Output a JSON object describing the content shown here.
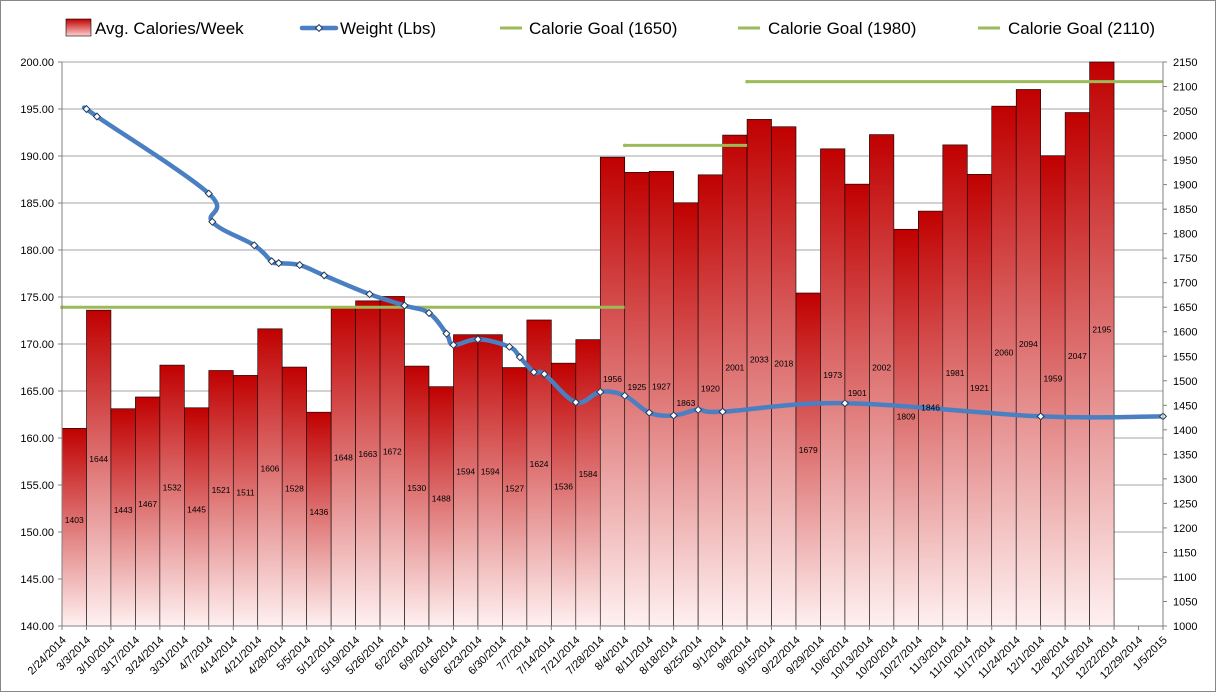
{
  "chart_data": {
    "type": "bar",
    "x_dates": [
      "2/24/2014",
      "3/3/2014",
      "3/10/2014",
      "3/17/2014",
      "3/24/2014",
      "3/31/2014",
      "4/7/2014",
      "4/14/2014",
      "4/21/2014",
      "4/28/2014",
      "5/5/2014",
      "5/12/2014",
      "5/19/2014",
      "5/26/2014",
      "6/2/2014",
      "6/9/2014",
      "6/16/2014",
      "6/23/2014",
      "6/30/2014",
      "7/7/2014",
      "7/14/2014",
      "7/21/2014",
      "7/28/2014",
      "8/4/2014",
      "8/11/2014",
      "8/18/2014",
      "8/25/2014",
      "9/1/2014",
      "9/8/2014",
      "9/15/2014",
      "9/22/2014",
      "9/29/2014",
      "10/6/2014",
      "10/13/2014",
      "10/20/2014",
      "10/27/2014",
      "11/3/2014",
      "11/10/2014",
      "11/17/2014",
      "11/24/2014",
      "12/1/2014",
      "12/8/2014",
      "12/15/2014",
      "12/22/2014",
      "12/29/2014",
      "1/5/2015"
    ],
    "calories_week_start": [
      "3/3/2014",
      "3/10/2014",
      "3/17/2014",
      "3/24/2014",
      "3/31/2014",
      "4/7/2014",
      "4/14/2014",
      "4/21/2014",
      "4/28/2014",
      "5/5/2014",
      "5/12/2014",
      "5/19/2014",
      "5/26/2014",
      "6/2/2014",
      "6/9/2014",
      "6/16/2014",
      "6/23/2014",
      "6/30/2014",
      "7/7/2014",
      "7/14/2014",
      "7/21/2014",
      "7/28/2014",
      "8/4/2014",
      "8/11/2014",
      "8/18/2014",
      "8/25/2014",
      "9/1/2014",
      "9/8/2014",
      "9/15/2014",
      "9/22/2014",
      "9/29/2014",
      "10/6/2014",
      "10/13/2014",
      "10/20/2014",
      "10/27/2014",
      "11/3/2014",
      "11/10/2014",
      "11/17/2014",
      "11/24/2014",
      "12/1/2014",
      "12/8/2014",
      "12/15/2014",
      "12/22/2014"
    ],
    "series": [
      {
        "name": "Avg. Calories/Week",
        "axis": "right",
        "values": [
          1403,
          1644,
          1443,
          1467,
          1532,
          1445,
          1521,
          1511,
          1606,
          1528,
          1436,
          1648,
          1663,
          1672,
          1530,
          1488,
          1594,
          1594,
          1527,
          1624,
          1536,
          1584,
          1956,
          1925,
          1927,
          1863,
          1920,
          2001,
          2033,
          2018,
          1679,
          1973,
          1901,
          2002,
          1809,
          1846,
          1981,
          1921,
          2060,
          2094,
          1959,
          2047,
          2195
        ],
        "color": "#c00000"
      },
      {
        "name": "Weight (Lbs)",
        "axis": "left",
        "color": "#4a7fc1",
        "points": [
          [
            "3/3/2014",
            195.0
          ],
          [
            "3/6/2014",
            194.2
          ],
          [
            "4/7/2014",
            186.0
          ],
          [
            "4/8/2014",
            183.0
          ],
          [
            "4/20/2014",
            180.5
          ],
          [
            "4/25/2014",
            178.8
          ],
          [
            "4/27/2014",
            178.6
          ],
          [
            "5/3/2014",
            178.4
          ],
          [
            "5/10/2014",
            177.3
          ],
          [
            "5/23/2014",
            175.3
          ],
          [
            "6/2/2014",
            174.1
          ],
          [
            "6/9/2014",
            173.3
          ],
          [
            "6/14/2014",
            171.1
          ],
          [
            "6/16/2014",
            169.9
          ],
          [
            "6/23/2014",
            170.5
          ],
          [
            "7/2/2014",
            169.7
          ],
          [
            "7/5/2014",
            168.6
          ],
          [
            "7/9/2014",
            167.0
          ],
          [
            "7/12/2014",
            166.8
          ],
          [
            "7/21/2014",
            163.8
          ],
          [
            "7/28/2014",
            164.9
          ],
          [
            "8/4/2014",
            164.5
          ],
          [
            "8/11/2014",
            162.7
          ],
          [
            "8/18/2014",
            162.4
          ],
          [
            "8/25/2014",
            163.0
          ],
          [
            "9/1/2014",
            162.8
          ],
          [
            "10/6/2014",
            163.7
          ],
          [
            "12/1/2014",
            162.3
          ],
          [
            "1/5/2015",
            162.3
          ]
        ]
      },
      {
        "name": "Calorie Goal (1650)",
        "axis": "right",
        "color": "#9bbb59",
        "value": 1650,
        "from": "2/24/2014",
        "to": "8/4/2014"
      },
      {
        "name": "Calorie Goal (1980)",
        "axis": "right",
        "color": "#9bbb59",
        "value": 1980,
        "from": "8/4/2014",
        "to": "9/8/2014"
      },
      {
        "name": "Calorie Goal (2110)",
        "axis": "right",
        "color": "#9bbb59",
        "value": 2110,
        "from": "9/8/2014",
        "to": "1/5/2015"
      }
    ],
    "y_left": {
      "min": 140,
      "max": 200,
      "step": 5,
      "ticks": [
        "140.00",
        "145.00",
        "150.00",
        "155.00",
        "160.00",
        "165.00",
        "170.00",
        "175.00",
        "180.00",
        "185.00",
        "190.00",
        "195.00",
        "200.00"
      ]
    },
    "y_right": {
      "min": 1000,
      "max": 2150,
      "step": 50,
      "ticks": [
        "1000",
        "1050",
        "1100",
        "1150",
        "1200",
        "1250",
        "1300",
        "1350",
        "1400",
        "1450",
        "1500",
        "1550",
        "1600",
        "1650",
        "1700",
        "1750",
        "1800",
        "1850",
        "1900",
        "1950",
        "2000",
        "2050",
        "2100",
        "2150"
      ]
    },
    "grid": true,
    "legend_position": "top",
    "title": "",
    "xlabel": "",
    "ylabel": ""
  }
}
